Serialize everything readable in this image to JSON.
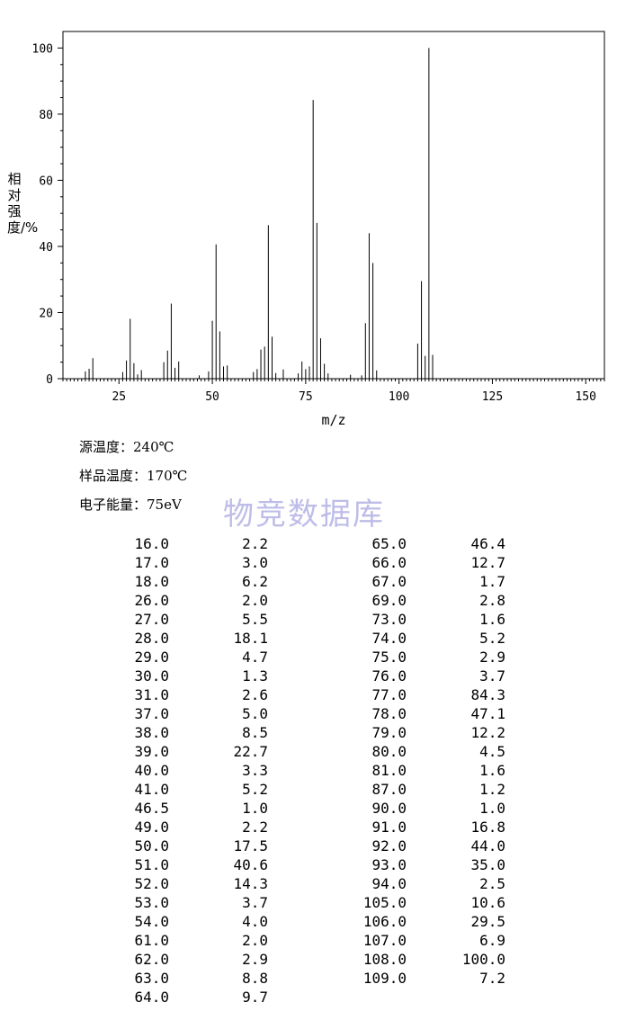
{
  "chart_data": {
    "type": "bar",
    "xlabel": "m/z",
    "ylabel": "相对强度/%",
    "xlim": [
      10,
      155
    ],
    "ylim": [
      0,
      105
    ],
    "xticks": [
      25,
      50,
      75,
      100,
      125,
      150
    ],
    "yticks": [
      0,
      20,
      40,
      60,
      80,
      100
    ],
    "x": [
      16.0,
      17.0,
      18.0,
      26.0,
      27.0,
      28.0,
      29.0,
      30.0,
      31.0,
      37.0,
      38.0,
      39.0,
      40.0,
      41.0,
      46.5,
      49.0,
      50.0,
      51.0,
      52.0,
      53.0,
      54.0,
      61.0,
      62.0,
      63.0,
      64.0,
      65.0,
      66.0,
      67.0,
      69.0,
      73.0,
      74.0,
      75.0,
      76.0,
      77.0,
      78.0,
      79.0,
      80.0,
      81.0,
      87.0,
      90.0,
      91.0,
      92.0,
      93.0,
      94.0,
      105.0,
      106.0,
      107.0,
      108.0,
      109.0
    ],
    "values": [
      2.2,
      3.0,
      6.2,
      2.0,
      5.5,
      18.1,
      4.7,
      1.3,
      2.6,
      5.0,
      8.5,
      22.7,
      3.3,
      5.2,
      1.0,
      2.2,
      17.5,
      40.6,
      14.3,
      3.7,
      4.0,
      2.0,
      2.9,
      8.8,
      9.7,
      46.4,
      12.7,
      1.7,
      2.8,
      1.6,
      5.2,
      2.9,
      3.7,
      84.3,
      47.1,
      12.2,
      4.5,
      1.6,
      1.2,
      1.0,
      16.8,
      44.0,
      35.0,
      2.5,
      10.6,
      29.5,
      6.9,
      100.0,
      7.2
    ]
  },
  "conditions": {
    "source_temp": "源温度：240℃",
    "sample_temp": "样品温度：170℃",
    "energy": "电子能量：75eV"
  },
  "watermark": "物竞数据库",
  "table": {
    "left": [
      [
        "16.0",
        "2.2"
      ],
      [
        "17.0",
        "3.0"
      ],
      [
        "18.0",
        "6.2"
      ],
      [
        "26.0",
        "2.0"
      ],
      [
        "27.0",
        "5.5"
      ],
      [
        "28.0",
        "18.1"
      ],
      [
        "29.0",
        "4.7"
      ],
      [
        "30.0",
        "1.3"
      ],
      [
        "31.0",
        "2.6"
      ],
      [
        "37.0",
        "5.0"
      ],
      [
        "38.0",
        "8.5"
      ],
      [
        "39.0",
        "22.7"
      ],
      [
        "40.0",
        "3.3"
      ],
      [
        "41.0",
        "5.2"
      ],
      [
        "46.5",
        "1.0"
      ],
      [
        "49.0",
        "2.2"
      ],
      [
        "50.0",
        "17.5"
      ],
      [
        "51.0",
        "40.6"
      ],
      [
        "52.0",
        "14.3"
      ],
      [
        "53.0",
        "3.7"
      ],
      [
        "54.0",
        "4.0"
      ],
      [
        "61.0",
        "2.0"
      ],
      [
        "62.0",
        "2.9"
      ],
      [
        "63.0",
        "8.8"
      ],
      [
        "64.0",
        "9.7"
      ]
    ],
    "right": [
      [
        "65.0",
        "46.4"
      ],
      [
        "66.0",
        "12.7"
      ],
      [
        "67.0",
        "1.7"
      ],
      [
        "69.0",
        "2.8"
      ],
      [
        "73.0",
        "1.6"
      ],
      [
        "74.0",
        "5.2"
      ],
      [
        "75.0",
        "2.9"
      ],
      [
        "76.0",
        "3.7"
      ],
      [
        "77.0",
        "84.3"
      ],
      [
        "78.0",
        "47.1"
      ],
      [
        "79.0",
        "12.2"
      ],
      [
        "80.0",
        "4.5"
      ],
      [
        "81.0",
        "1.6"
      ],
      [
        "87.0",
        "1.2"
      ],
      [
        "90.0",
        "1.0"
      ],
      [
        "91.0",
        "16.8"
      ],
      [
        "92.0",
        "44.0"
      ],
      [
        "93.0",
        "35.0"
      ],
      [
        "94.0",
        "2.5"
      ],
      [
        "105.0",
        "10.6"
      ],
      [
        "106.0",
        "29.5"
      ],
      [
        "107.0",
        "6.9"
      ],
      [
        "108.0",
        "100.0"
      ],
      [
        "109.0",
        "7.2"
      ]
    ]
  }
}
